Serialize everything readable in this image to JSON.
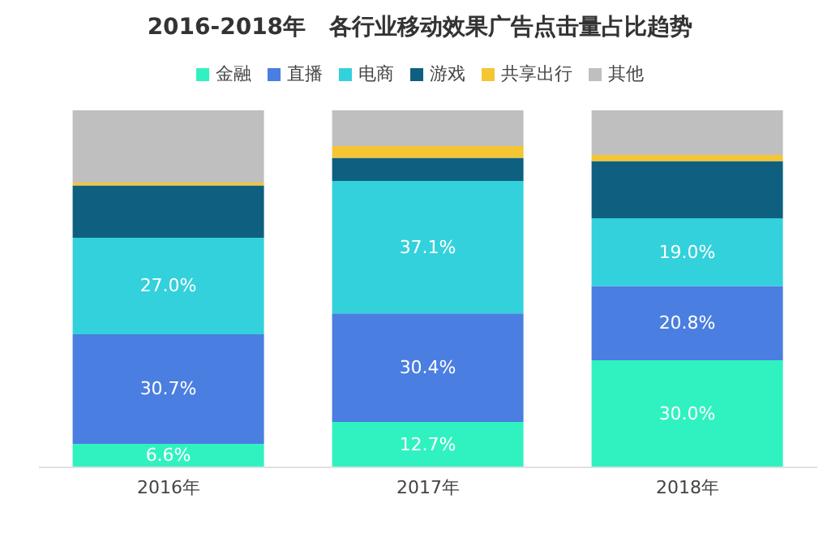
{
  "chart_data": {
    "type": "bar",
    "title": "2016-2018年   各行业移动效果广告点击量占比趋势",
    "stacked": true,
    "legend": "top",
    "categories": [
      "2016年",
      "2017年",
      "2018年"
    ],
    "series": [
      {
        "name": "金融",
        "color": "#30f2c0",
        "values": [
          6.6,
          12.7,
          30.0
        ],
        "value_labels": [
          "6.6%",
          "12.7%",
          "30.0%"
        ]
      },
      {
        "name": "直播",
        "color": "#4a7ee0",
        "values": [
          30.7,
          30.4,
          20.8
        ],
        "value_labels": [
          "30.7%",
          "30.4%",
          "20.8%"
        ]
      },
      {
        "name": "电商",
        "color": "#33d1db",
        "values": [
          27.0,
          37.1,
          19.0
        ],
        "value_labels": [
          "27.0%",
          "37.1%",
          "19.0%"
        ]
      },
      {
        "name": "游戏",
        "color": "#0f6080",
        "values": [
          14.7,
          6.5,
          16.0
        ],
        "value_labels": [
          null,
          null,
          null
        ]
      },
      {
        "name": "共享出行",
        "color": "#f5c533",
        "values": [
          0.8,
          3.3,
          1.7
        ],
        "value_labels": [
          null,
          null,
          null
        ]
      },
      {
        "name": "其他",
        "color": "#bfbfbf",
        "values": [
          20.2,
          10.0,
          12.5
        ],
        "value_labels": [
          null,
          null,
          null
        ]
      }
    ]
  }
}
